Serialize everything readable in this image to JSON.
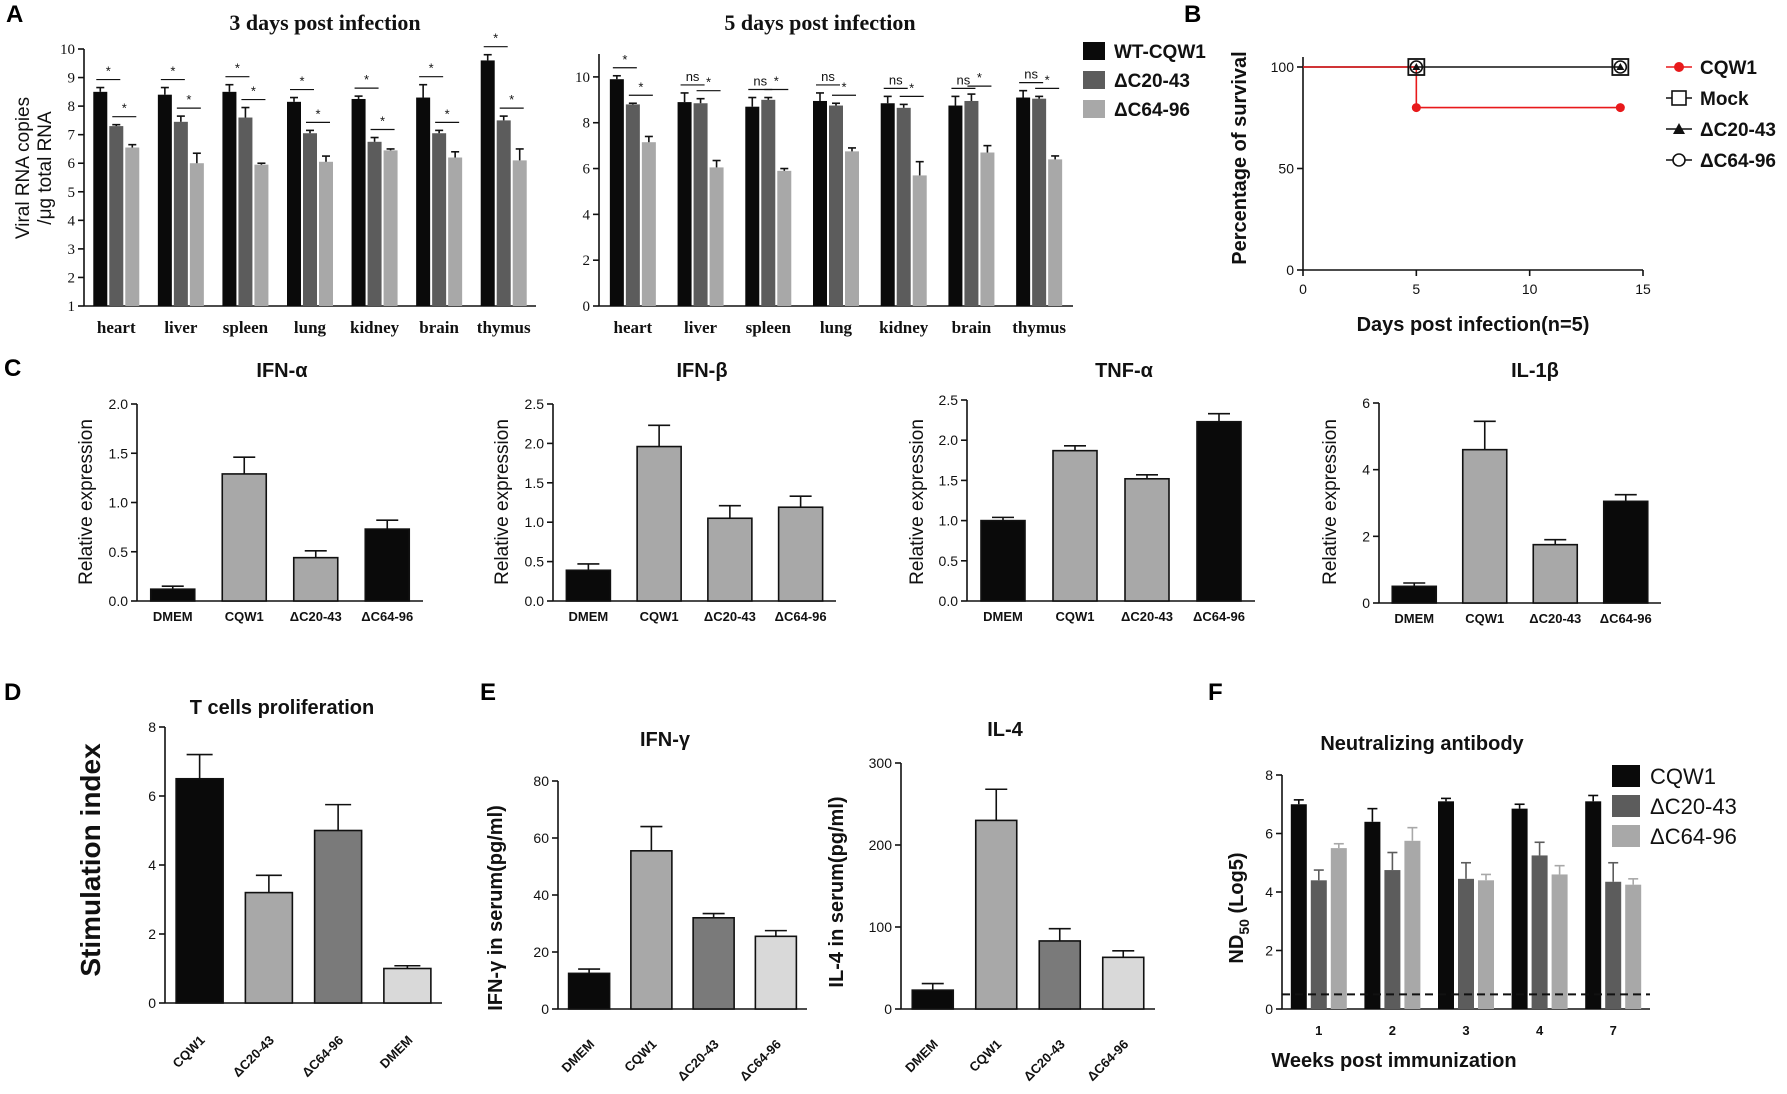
{
  "panel_labels": {
    "A": "A",
    "B": "B",
    "C": "C",
    "D": "D",
    "E": "E",
    "F": "F"
  },
  "colors": {
    "black": "#0a0a0a",
    "dark_gray": "#5c5c5c",
    "light_gray": "#a8a8a8",
    "mid_gray": "#7a7a7a",
    "pale_gray": "#d9d9d9",
    "red": "#e8191b"
  },
  "chart_data": [
    {
      "id": "A1",
      "type": "bar",
      "title": "3 days post infection",
      "ylabel_line1": "Viral RNA copies",
      "ylabel_line2": "/μg total RNA",
      "ylim": [
        1,
        10
      ],
      "yticks": [
        "1",
        "2",
        "3",
        "4",
        "5",
        "6",
        "7",
        "8",
        "9",
        "10"
      ],
      "categories": [
        "heart",
        "liver",
        "spleen",
        "lung",
        "kidney",
        "brain",
        "thymus"
      ],
      "series": [
        {
          "name": "WT-CQW1",
          "color": "#0a0a0a",
          "values": [
            8.5,
            8.4,
            8.5,
            8.15,
            8.25,
            8.3,
            9.6
          ],
          "errors": [
            0.15,
            0.25,
            0.25,
            0.15,
            0.1,
            0.45,
            0.2
          ]
        },
        {
          "name": "ΔC20-43",
          "color": "#5c5c5c",
          "values": [
            7.3,
            7.45,
            7.6,
            7.05,
            6.75,
            7.05,
            7.5
          ],
          "errors": [
            0.05,
            0.2,
            0.35,
            0.1,
            0.15,
            0.1,
            0.15
          ]
        },
        {
          "name": "ΔC64-96",
          "color": "#a8a8a8",
          "values": [
            6.55,
            6.0,
            5.95,
            6.05,
            6.45,
            6.2,
            6.1
          ],
          "errors": [
            0.1,
            0.35,
            0.05,
            0.2,
            0.05,
            0.2,
            0.4
          ]
        }
      ],
      "significance": [
        [
          "*",
          "*"
        ],
        [
          "*",
          "*"
        ],
        [
          "*",
          "*"
        ],
        [
          "*",
          "*"
        ],
        [
          "*",
          "*"
        ],
        [
          "*",
          "*"
        ],
        [
          "*",
          "*"
        ]
      ]
    },
    {
      "id": "A2",
      "type": "bar",
      "title": "5 days post infection",
      "ylim": [
        0,
        11
      ],
      "yticks": [
        "0",
        "2",
        "4",
        "6",
        "8",
        "10"
      ],
      "categories": [
        "heart",
        "liver",
        "spleen",
        "lung",
        "kidney",
        "brain",
        "thymus"
      ],
      "series": [
        {
          "name": "WT-CQW1",
          "color": "#0a0a0a",
          "values": [
            9.9,
            8.9,
            8.7,
            8.95,
            8.85,
            8.75,
            9.1
          ],
          "errors": [
            0.15,
            0.4,
            0.4,
            0.35,
            0.3,
            0.4,
            0.3
          ]
        },
        {
          "name": "ΔC20-43",
          "color": "#5c5c5c",
          "values": [
            8.8,
            8.85,
            9.0,
            8.75,
            8.65,
            8.95,
            9.05
          ],
          "errors": [
            0.05,
            0.2,
            0.1,
            0.1,
            0.15,
            0.3,
            0.1
          ]
        },
        {
          "name": "ΔC64-96",
          "color": "#a8a8a8",
          "values": [
            7.15,
            6.05,
            5.9,
            6.75,
            5.7,
            6.7,
            6.4
          ],
          "errors": [
            0.25,
            0.3,
            0.1,
            0.15,
            0.6,
            0.3,
            0.15
          ]
        }
      ],
      "significance": [
        [
          "*",
          "*"
        ],
        [
          "ns",
          "*"
        ],
        [
          "ns",
          "*"
        ],
        [
          "ns",
          "*"
        ],
        [
          "ns",
          "*"
        ],
        [
          "ns",
          "*"
        ],
        [
          "ns",
          "*"
        ]
      ]
    },
    {
      "id": "B",
      "type": "line",
      "ylabel": "Percentage of survival",
      "xlabel": "Days post infection(n=5)",
      "xlim": [
        0,
        15
      ],
      "ylim": [
        0,
        100
      ],
      "xticks": [
        "0",
        "5",
        "10",
        "15"
      ],
      "yticks": [
        "0",
        "50",
        "100"
      ],
      "series": [
        {
          "name": "CQW1",
          "marker": "filled-circle",
          "color": "#e8191b",
          "x": [
            0,
            5,
            5,
            14
          ],
          "y": [
            100,
            100,
            80,
            80
          ]
        },
        {
          "name": "Mock",
          "marker": "open-square",
          "color": "#111111",
          "x": [
            0,
            5,
            14
          ],
          "y": [
            100,
            100,
            100
          ]
        },
        {
          "name": "ΔC20-43",
          "marker": "filled-triangle",
          "color": "#111111",
          "x": [
            0,
            5,
            14
          ],
          "y": [
            100,
            100,
            100
          ]
        },
        {
          "name": "ΔC64-96",
          "marker": "open-circle",
          "color": "#111111",
          "x": [
            0,
            5,
            14
          ],
          "y": [
            100,
            100,
            100
          ]
        }
      ]
    },
    {
      "id": "C1",
      "type": "bar",
      "title": "IFN-α",
      "ylabel": "Relative expression",
      "ylim": [
        0,
        2.0
      ],
      "yticks": [
        "0.0",
        "0.5",
        "1.0",
        "1.5",
        "2.0"
      ],
      "categories": [
        "DMEM",
        "CQW1",
        "ΔC20-43",
        "ΔC64-96"
      ],
      "values": [
        0.12,
        1.29,
        0.44,
        0.73
      ],
      "errors": [
        0.03,
        0.17,
        0.07,
        0.09
      ],
      "colors": [
        "#0a0a0a",
        "#a8a8a8",
        "#a8a8a8",
        "#0a0a0a"
      ]
    },
    {
      "id": "C2",
      "type": "bar",
      "title": "IFN-β",
      "ylabel": "Relative expression",
      "ylim": [
        0,
        2.5
      ],
      "yticks": [
        "0.0",
        "0.5",
        "1.0",
        "1.5",
        "2.0",
        "2.5"
      ],
      "categories": [
        "DMEM",
        "CQW1",
        "ΔC20-43",
        "ΔC64-96"
      ],
      "values": [
        0.39,
        1.96,
        1.05,
        1.19
      ],
      "errors": [
        0.08,
        0.27,
        0.16,
        0.14
      ],
      "colors": [
        "#0a0a0a",
        "#a8a8a8",
        "#a8a8a8",
        "#a8a8a8"
      ]
    },
    {
      "id": "C3",
      "type": "bar",
      "title": "TNF-α",
      "ylabel": "Relative expression",
      "ylim": [
        0,
        2.5
      ],
      "yticks": [
        "0.0",
        "0.5",
        "1.0",
        "1.5",
        "2.0",
        "2.5"
      ],
      "categories": [
        "DMEM",
        "CQW1",
        "ΔC20-43",
        "ΔC64-96"
      ],
      "values": [
        1.0,
        1.87,
        1.52,
        2.23
      ],
      "errors": [
        0.04,
        0.06,
        0.05,
        0.1
      ],
      "colors": [
        "#0a0a0a",
        "#a8a8a8",
        "#a8a8a8",
        "#0a0a0a"
      ]
    },
    {
      "id": "C4",
      "type": "bar",
      "title": "IL-1β",
      "ylabel": "Relative expression",
      "ylim": [
        0,
        6
      ],
      "yticks": [
        "0",
        "2",
        "4",
        "6"
      ],
      "categories": [
        "DMEM",
        "CQW1",
        "ΔC20-43",
        "ΔC64-96"
      ],
      "values": [
        0.5,
        4.6,
        1.75,
        3.05
      ],
      "errors": [
        0.1,
        0.85,
        0.15,
        0.2
      ],
      "colors": [
        "#0a0a0a",
        "#a8a8a8",
        "#a8a8a8",
        "#0a0a0a"
      ]
    },
    {
      "id": "D",
      "type": "bar",
      "title": "T cells proliferation",
      "ylabel": "Stimulation index",
      "ylim": [
        0,
        8
      ],
      "yticks": [
        "0",
        "2",
        "4",
        "6",
        "8"
      ],
      "categories": [
        "CQW1",
        "ΔC20-43",
        "ΔC64-96",
        "DMEM"
      ],
      "values": [
        6.5,
        3.2,
        5.0,
        1.0
      ],
      "errors": [
        0.7,
        0.5,
        0.75,
        0.08
      ],
      "colors": [
        "#0a0a0a",
        "#a8a8a8",
        "#7a7a7a",
        "#d9d9d9"
      ]
    },
    {
      "id": "E1",
      "type": "bar",
      "title": "IFN-γ",
      "ylabel": "IFN-γ in serum(pg/ml)",
      "ylim": [
        0,
        80
      ],
      "yticks": [
        "0",
        "20",
        "40",
        "60",
        "80"
      ],
      "categories": [
        "DMEM",
        "CQW1",
        "ΔC20-43",
        "ΔC64-96"
      ],
      "values": [
        12.5,
        55.5,
        32.0,
        25.5
      ],
      "errors": [
        1.5,
        8.5,
        1.5,
        2.0
      ],
      "colors": [
        "#0a0a0a",
        "#a8a8a8",
        "#7a7a7a",
        "#d9d9d9"
      ]
    },
    {
      "id": "E2",
      "type": "bar",
      "title": "IL-4",
      "ylabel": "IL-4 in serum(pg/ml)",
      "ylim": [
        0,
        300
      ],
      "yticks": [
        "0",
        "100",
        "200",
        "300"
      ],
      "categories": [
        "DMEM",
        "CQW1",
        "ΔC20-43",
        "ΔC64-96"
      ],
      "values": [
        23,
        230,
        83,
        63
      ],
      "errors": [
        8,
        38,
        15,
        8
      ],
      "colors": [
        "#0a0a0a",
        "#a8a8a8",
        "#7a7a7a",
        "#d9d9d9"
      ]
    },
    {
      "id": "F",
      "type": "bar",
      "title": "Neutralizing antibody",
      "ylabel_main": "ND",
      "ylabel_sub": "50",
      "ylabel_tail": " (Log5)",
      "xlabel": "Weeks post immunization",
      "ylim": [
        0,
        8
      ],
      "yticks": [
        "0",
        "2",
        "4",
        "6",
        "8"
      ],
      "categories": [
        "1",
        "2",
        "3",
        "4",
        "7"
      ],
      "reference_line": 0.5,
      "series": [
        {
          "name": "CQW1",
          "color": "#0a0a0a",
          "values": [
            7.0,
            6.4,
            7.1,
            6.85,
            7.1
          ],
          "errors": [
            0.15,
            0.45,
            0.1,
            0.15,
            0.2
          ]
        },
        {
          "name": "ΔC20-43",
          "color": "#5c5c5c",
          "values": [
            4.4,
            4.75,
            4.45,
            5.25,
            4.35
          ],
          "errors": [
            0.35,
            0.6,
            0.55,
            0.45,
            0.65
          ]
        },
        {
          "name": "ΔC64-96",
          "color": "#a8a8a8",
          "values": [
            5.5,
            5.75,
            4.4,
            4.6,
            4.25
          ],
          "errors": [
            0.15,
            0.45,
            0.2,
            0.3,
            0.2
          ]
        }
      ]
    }
  ]
}
